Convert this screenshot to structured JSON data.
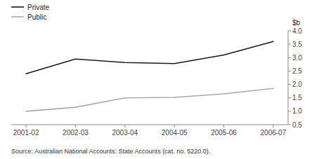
{
  "chart_data": {
    "type": "line",
    "categories": [
      "2001-02",
      "2002-03",
      "2003-04",
      "2004-05",
      "2005-06",
      "2006-07"
    ],
    "series": [
      {
        "name": "Private",
        "color": "#1a1a1a",
        "values": [
          2.4,
          2.95,
          2.82,
          2.78,
          3.1,
          3.6
        ]
      },
      {
        "name": "Public",
        "color": "#aaaaaa",
        "values": [
          1.0,
          1.15,
          1.5,
          1.52,
          1.65,
          1.85
        ]
      }
    ],
    "y_label": "$b",
    "source": "Source: Australian National Accounts: State Accounts (cat. no. 5220.0).",
    "ylim": [
      0.5,
      4.0
    ],
    "yticks": [
      0.5,
      {
        "value": 1.0,
        "label": "1.0"
      },
      1.5,
      {
        "value": 2.0,
        "label": "2.0"
      },
      2.5,
      {
        "value": 3.0,
        "label": "3.0"
      },
      3.5,
      {
        "value": 4.0,
        "label": "4.0"
      }
    ],
    "grid": false,
    "legend": "top-left"
  }
}
